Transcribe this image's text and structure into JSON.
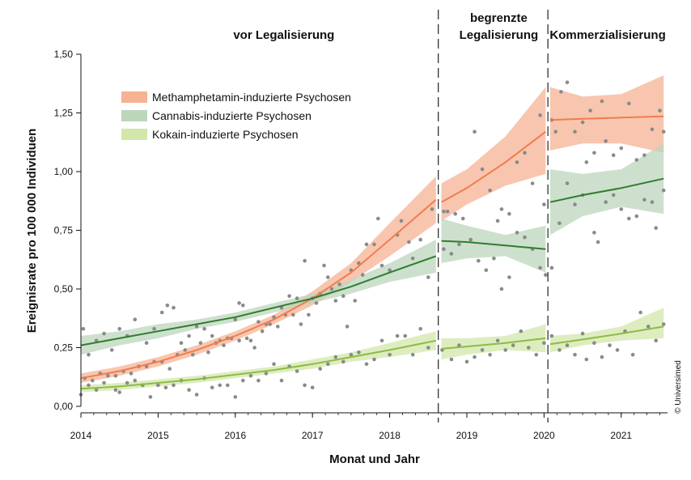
{
  "chart_data": {
    "type": "scatter",
    "xlabel": "Monat und Jahr",
    "ylabel": "Ereignisrate pro 100 000 Individuen",
    "xlim": [
      2014,
      2021.6
    ],
    "ylim": [
      0,
      1.5
    ],
    "x_ticks": [
      2014,
      2015,
      2016,
      2017,
      2018,
      2019,
      2020,
      2021
    ],
    "y_ticks": [
      0,
      0.25,
      0.5,
      0.75,
      1.0,
      1.25,
      1.5
    ],
    "y_tick_labels": [
      "0,00",
      "0,25",
      "0,50",
      "0,75",
      "1,00",
      "1,25",
      "1,50"
    ],
    "legend_position": "top-left",
    "grid": false,
    "periods": [
      {
        "label_lines": [
          "vor Legalisierung"
        ],
        "start": 2014,
        "end": 2018.63
      },
      {
        "label_lines": [
          "begrenzte",
          "Legalisierung"
        ],
        "start": 2018.63,
        "end": 2020.05
      },
      {
        "label_lines": [
          "Kommerzialisierung"
        ],
        "start": 2020.05,
        "end": 2021.6
      }
    ],
    "breaks": [
      2018.63,
      2020.05
    ],
    "series": [
      {
        "name": "Methamphetamin-induzierte Psychosen",
        "color": "#f07c50",
        "band_color": "#f6b393",
        "segments": [
          {
            "x": [
              2014,
              2014.5,
              2015,
              2015.5,
              2016,
              2016.5,
              2017,
              2017.5,
              2018,
              2018.6
            ],
            "y": [
              0.12,
              0.15,
              0.19,
              0.24,
              0.3,
              0.37,
              0.46,
              0.57,
              0.71,
              0.88
            ],
            "lower": [
              0.1,
              0.13,
              0.17,
              0.22,
              0.28,
              0.35,
              0.43,
              0.53,
              0.64,
              0.78
            ],
            "upper": [
              0.14,
              0.17,
              0.21,
              0.26,
              0.32,
              0.39,
              0.49,
              0.61,
              0.78,
              0.98
            ]
          },
          {
            "x": [
              2018.67,
              2019,
              2019.5,
              2020.02
            ],
            "y": [
              0.87,
              0.93,
              1.04,
              1.17
            ],
            "lower": [
              0.79,
              0.86,
              0.94,
              0.99
            ],
            "upper": [
              0.95,
              1.01,
              1.15,
              1.36
            ]
          },
          {
            "x": [
              2020.08,
              2020.5,
              2021,
              2021.55
            ],
            "y": [
              1.22,
              1.225,
              1.23,
              1.235
            ],
            "lower": [
              1.09,
              1.12,
              1.12,
              1.08
            ],
            "upper": [
              1.36,
              1.32,
              1.33,
              1.41
            ]
          }
        ]
      },
      {
        "name": "Cannabis-induzierte Psychosen",
        "color": "#2e7d2e",
        "band_color": "#bcd6bc",
        "segments": [
          {
            "x": [
              2014,
              2014.5,
              2015,
              2015.5,
              2016,
              2016.5,
              2017,
              2017.5,
              2018,
              2018.6
            ],
            "y": [
              0.26,
              0.29,
              0.32,
              0.35,
              0.38,
              0.42,
              0.46,
              0.51,
              0.57,
              0.64
            ],
            "lower": [
              0.22,
              0.26,
              0.29,
              0.33,
              0.36,
              0.4,
              0.44,
              0.48,
              0.53,
              0.57
            ],
            "upper": [
              0.3,
              0.32,
              0.35,
              0.37,
              0.4,
              0.44,
              0.48,
              0.54,
              0.61,
              0.71
            ]
          },
          {
            "x": [
              2018.67,
              2019,
              2019.5,
              2020.02
            ],
            "y": [
              0.705,
              0.7,
              0.685,
              0.67
            ],
            "lower": [
              0.61,
              0.63,
              0.64,
              0.57
            ],
            "upper": [
              0.8,
              0.77,
              0.73,
              0.77
            ]
          },
          {
            "x": [
              2020.08,
              2020.5,
              2021,
              2021.55
            ],
            "y": [
              0.87,
              0.9,
              0.93,
              0.97
            ],
            "lower": [
              0.73,
              0.81,
              0.85,
              0.82
            ],
            "upper": [
              1.01,
              0.99,
              1.01,
              1.12
            ]
          }
        ]
      },
      {
        "name": "Kokain-induzierte Psychosen",
        "color": "#8dbb45",
        "band_color": "#d2e7a9",
        "segments": [
          {
            "x": [
              2014,
              2014.5,
              2015,
              2015.5,
              2016,
              2016.5,
              2017,
              2017.5,
              2018,
              2018.6
            ],
            "y": [
              0.075,
              0.085,
              0.1,
              0.115,
              0.135,
              0.155,
              0.18,
              0.21,
              0.24,
              0.28
            ],
            "lower": [
              0.06,
              0.07,
              0.085,
              0.1,
              0.12,
              0.14,
              0.16,
              0.19,
              0.21,
              0.24
            ],
            "upper": [
              0.09,
              0.1,
              0.115,
              0.13,
              0.15,
              0.17,
              0.2,
              0.23,
              0.27,
              0.32
            ]
          },
          {
            "x": [
              2018.67,
              2019,
              2019.5,
              2020.02
            ],
            "y": [
              0.245,
              0.255,
              0.27,
              0.29
            ],
            "lower": [
              0.2,
              0.22,
              0.24,
              0.23
            ],
            "upper": [
              0.29,
              0.29,
              0.3,
              0.35
            ]
          },
          {
            "x": [
              2020.08,
              2020.5,
              2021,
              2021.55
            ],
            "y": [
              0.265,
              0.285,
              0.31,
              0.34
            ],
            "lower": [
              0.23,
              0.26,
              0.28,
              0.29
            ],
            "upper": [
              0.3,
              0.31,
              0.34,
              0.42
            ]
          }
        ]
      }
    ],
    "observations": [
      [
        2014.03,
        0.33
      ],
      [
        2014.1,
        0.22
      ],
      [
        2014.2,
        0.28
      ],
      [
        2014.3,
        0.31
      ],
      [
        2014.4,
        0.24
      ],
      [
        2014.5,
        0.33
      ],
      [
        2014.6,
        0.3
      ],
      [
        2014.7,
        0.37
      ],
      [
        2014.85,
        0.27
      ],
      [
        2014.95,
        0.33
      ],
      [
        2015.05,
        0.4
      ],
      [
        2015.12,
        0.43
      ],
      [
        2015.2,
        0.42
      ],
      [
        2015.3,
        0.27
      ],
      [
        2015.4,
        0.3
      ],
      [
        2015.5,
        0.34
      ],
      [
        2015.6,
        0.33
      ],
      [
        2015.7,
        0.3
      ],
      [
        2015.8,
        0.28
      ],
      [
        2015.9,
        0.29
      ],
      [
        2016.0,
        0.37
      ],
      [
        2016.05,
        0.44
      ],
      [
        2016.1,
        0.43
      ],
      [
        2016.2,
        0.28
      ],
      [
        2016.3,
        0.36
      ],
      [
        2016.4,
        0.35
      ],
      [
        2016.5,
        0.38
      ],
      [
        2016.6,
        0.42
      ],
      [
        2016.7,
        0.47
      ],
      [
        2016.8,
        0.46
      ],
      [
        2016.9,
        0.62
      ],
      [
        2017.0,
        0.46
      ],
      [
        2017.1,
        0.48
      ],
      [
        2017.15,
        0.6
      ],
      [
        2017.2,
        0.55
      ],
      [
        2017.3,
        0.45
      ],
      [
        2017.4,
        0.47
      ],
      [
        2017.5,
        0.58
      ],
      [
        2017.6,
        0.61
      ],
      [
        2017.65,
        0.56
      ],
      [
        2017.7,
        0.69
      ],
      [
        2017.8,
        0.69
      ],
      [
        2017.85,
        0.8
      ],
      [
        2017.9,
        0.6
      ],
      [
        2018.0,
        0.58
      ],
      [
        2018.1,
        0.73
      ],
      [
        2018.15,
        0.79
      ],
      [
        2018.25,
        0.7
      ],
      [
        2018.3,
        0.63
      ],
      [
        2018.4,
        0.71
      ],
      [
        2018.5,
        0.55
      ],
      [
        2018.55,
        0.84
      ],
      [
        2014.05,
        0.12
      ],
      [
        2014.15,
        0.11
      ],
      [
        2014.25,
        0.14
      ],
      [
        2014.35,
        0.13
      ],
      [
        2014.45,
        0.13
      ],
      [
        2014.55,
        0.15
      ],
      [
        2014.65,
        0.14
      ],
      [
        2014.75,
        0.17
      ],
      [
        2014.85,
        0.17
      ],
      [
        2014.95,
        0.19
      ],
      [
        2015.05,
        0.19
      ],
      [
        2015.15,
        0.16
      ],
      [
        2015.25,
        0.22
      ],
      [
        2015.35,
        0.24
      ],
      [
        2015.45,
        0.22
      ],
      [
        2015.55,
        0.27
      ],
      [
        2015.65,
        0.23
      ],
      [
        2015.75,
        0.27
      ],
      [
        2015.85,
        0.26
      ],
      [
        2015.95,
        0.29
      ],
      [
        2016.05,
        0.28
      ],
      [
        2016.15,
        0.29
      ],
      [
        2016.25,
        0.25
      ],
      [
        2016.35,
        0.32
      ],
      [
        2016.45,
        0.35
      ],
      [
        2016.55,
        0.34
      ],
      [
        2016.65,
        0.39
      ],
      [
        2016.75,
        0.39
      ],
      [
        2016.85,
        0.35
      ],
      [
        2016.95,
        0.39
      ],
      [
        2017.05,
        0.44
      ],
      [
        2017.25,
        0.5
      ],
      [
        2017.35,
        0.52
      ],
      [
        2017.45,
        0.34
      ],
      [
        2017.55,
        0.45
      ],
      [
        2014.0,
        0.05
      ],
      [
        2014.1,
        0.09
      ],
      [
        2014.2,
        0.07
      ],
      [
        2014.3,
        0.1
      ],
      [
        2014.45,
        0.07
      ],
      [
        2014.5,
        0.06
      ],
      [
        2014.6,
        0.1
      ],
      [
        2014.7,
        0.11
      ],
      [
        2014.8,
        0.09
      ],
      [
        2014.9,
        0.04
      ],
      [
        2015.0,
        0.09
      ],
      [
        2015.1,
        0.08
      ],
      [
        2015.2,
        0.09
      ],
      [
        2015.3,
        0.11
      ],
      [
        2015.4,
        0.07
      ],
      [
        2015.5,
        0.05
      ],
      [
        2015.6,
        0.12
      ],
      [
        2015.7,
        0.08
      ],
      [
        2015.8,
        0.09
      ],
      [
        2015.9,
        0.09
      ],
      [
        2016.0,
        0.04
      ],
      [
        2016.1,
        0.11
      ],
      [
        2016.2,
        0.13
      ],
      [
        2016.3,
        0.11
      ],
      [
        2016.4,
        0.14
      ],
      [
        2016.5,
        0.18
      ],
      [
        2016.6,
        0.11
      ],
      [
        2016.7,
        0.17
      ],
      [
        2016.8,
        0.15
      ],
      [
        2016.9,
        0.09
      ],
      [
        2017.0,
        0.08
      ],
      [
        2017.1,
        0.16
      ],
      [
        2017.2,
        0.18
      ],
      [
        2017.3,
        0.21
      ],
      [
        2017.4,
        0.19
      ],
      [
        2017.5,
        0.22
      ],
      [
        2017.6,
        0.23
      ],
      [
        2017.7,
        0.18
      ],
      [
        2017.8,
        0.2
      ],
      [
        2017.9,
        0.28
      ],
      [
        2018.0,
        0.22
      ],
      [
        2018.1,
        0.3
      ],
      [
        2018.2,
        0.3
      ],
      [
        2018.3,
        0.22
      ],
      [
        2018.4,
        0.33
      ],
      [
        2018.5,
        0.25
      ],
      [
        2018.7,
        0.83
      ],
      [
        2018.75,
        0.83
      ],
      [
        2018.85,
        0.82
      ],
      [
        2018.95,
        0.8
      ],
      [
        2019.1,
        1.17
      ],
      [
        2019.2,
        1.01
      ],
      [
        2019.3,
        0.92
      ],
      [
        2019.4,
        0.79
      ],
      [
        2019.45,
        0.84
      ],
      [
        2019.55,
        0.82
      ],
      [
        2019.65,
        1.04
      ],
      [
        2019.75,
        1.08
      ],
      [
        2019.85,
        0.95
      ],
      [
        2019.95,
        1.24
      ],
      [
        2020.0,
        0.86
      ],
      [
        2018.7,
        0.67
      ],
      [
        2018.8,
        0.65
      ],
      [
        2018.9,
        0.69
      ],
      [
        2019.05,
        0.71
      ],
      [
        2019.15,
        0.62
      ],
      [
        2019.25,
        0.58
      ],
      [
        2019.35,
        0.63
      ],
      [
        2019.45,
        0.5
      ],
      [
        2019.55,
        0.55
      ],
      [
        2019.65,
        0.74
      ],
      [
        2019.75,
        0.72
      ],
      [
        2019.85,
        0.67
      ],
      [
        2019.95,
        0.59
      ],
      [
        2020.02,
        0.56
      ],
      [
        2018.68,
        0.24
      ],
      [
        2018.8,
        0.2
      ],
      [
        2018.9,
        0.26
      ],
      [
        2019.0,
        0.19
      ],
      [
        2019.1,
        0.21
      ],
      [
        2019.2,
        0.24
      ],
      [
        2019.3,
        0.22
      ],
      [
        2019.4,
        0.28
      ],
      [
        2019.5,
        0.24
      ],
      [
        2019.6,
        0.26
      ],
      [
        2019.7,
        0.32
      ],
      [
        2019.8,
        0.25
      ],
      [
        2019.9,
        0.22
      ],
      [
        2020.0,
        0.27
      ],
      [
        2020.1,
        1.22
      ],
      [
        2020.15,
        1.17
      ],
      [
        2020.22,
        1.34
      ],
      [
        2020.3,
        1.38
      ],
      [
        2020.4,
        1.17
      ],
      [
        2020.5,
        1.21
      ],
      [
        2020.6,
        1.26
      ],
      [
        2020.65,
        1.08
      ],
      [
        2020.75,
        1.3
      ],
      [
        2020.8,
        1.13
      ],
      [
        2020.9,
        1.07
      ],
      [
        2021.0,
        1.1
      ],
      [
        2021.1,
        1.29
      ],
      [
        2021.2,
        1.05
      ],
      [
        2021.3,
        1.07
      ],
      [
        2021.4,
        1.18
      ],
      [
        2021.5,
        1.26
      ],
      [
        2021.55,
        1.17
      ],
      [
        2020.1,
        0.59
      ],
      [
        2020.2,
        0.78
      ],
      [
        2020.3,
        0.95
      ],
      [
        2020.4,
        0.86
      ],
      [
        2020.5,
        0.9
      ],
      [
        2020.55,
        1.04
      ],
      [
        2020.65,
        0.74
      ],
      [
        2020.7,
        0.7
      ],
      [
        2020.8,
        0.87
      ],
      [
        2020.9,
        0.9
      ],
      [
        2021.0,
        0.84
      ],
      [
        2021.1,
        0.8
      ],
      [
        2021.2,
        0.81
      ],
      [
        2021.3,
        0.88
      ],
      [
        2021.4,
        0.87
      ],
      [
        2021.45,
        0.76
      ],
      [
        2021.55,
        0.92
      ],
      [
        2020.1,
        0.3
      ],
      [
        2020.2,
        0.24
      ],
      [
        2020.3,
        0.26
      ],
      [
        2020.4,
        0.22
      ],
      [
        2020.5,
        0.31
      ],
      [
        2020.55,
        0.2
      ],
      [
        2020.65,
        0.27
      ],
      [
        2020.75,
        0.21
      ],
      [
        2020.85,
        0.26
      ],
      [
        2020.95,
        0.24
      ],
      [
        2021.05,
        0.32
      ],
      [
        2021.15,
        0.22
      ],
      [
        2021.25,
        0.4
      ],
      [
        2021.35,
        0.34
      ],
      [
        2021.45,
        0.28
      ],
      [
        2021.55,
        0.35
      ]
    ],
    "credit": "© Universimed"
  }
}
